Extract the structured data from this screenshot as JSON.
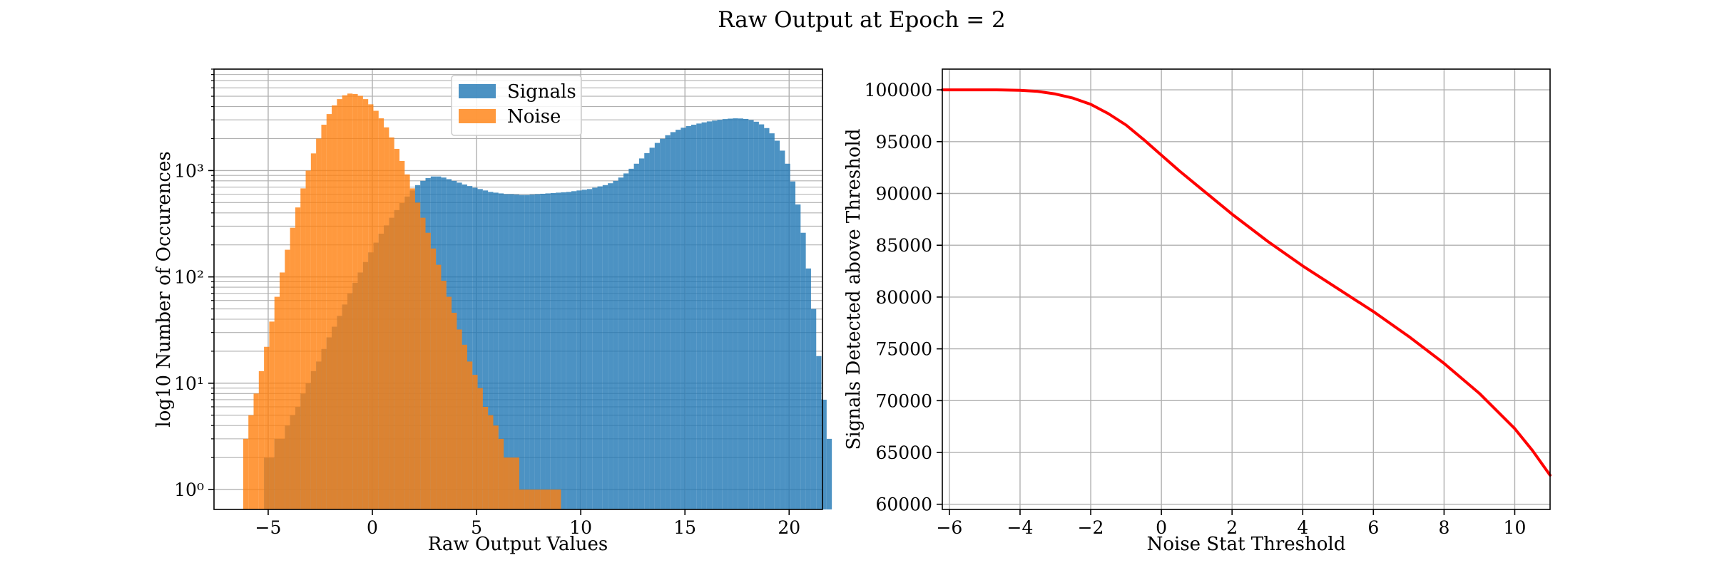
{
  "figure": {
    "title": "Raw Output at Epoch = 2"
  },
  "chart_data": [
    {
      "type": "bar",
      "subtype": "histogram",
      "xlabel": "Raw Output Values",
      "ylabel": "log10 Number of Occurences",
      "yscale": "log",
      "xlim": [
        -7.6,
        21.6
      ],
      "ylim": [
        0.65,
        9000
      ],
      "xticks": [
        -5,
        0,
        5,
        10,
        15,
        20
      ],
      "xtick_labels": [
        "−5",
        "0",
        "5",
        "10",
        "15",
        "20"
      ],
      "yticks": [
        1,
        10,
        100,
        1000
      ],
      "ytick_labels": [
        "10⁰",
        "10¹",
        "10²",
        "10³"
      ],
      "grid": true,
      "legend": {
        "placement": "upper-center",
        "entries": [
          "Signals",
          "Noise"
        ]
      },
      "bin_width": 0.25,
      "series": [
        {
          "name": "Signals",
          "color": "#1f77b4",
          "opacity": 0.8,
          "x_start": -5.2,
          "values": [
            2,
            2,
            3,
            3,
            4,
            5,
            6,
            8,
            10,
            13,
            16,
            21,
            27,
            34,
            43,
            55,
            70,
            88,
            110,
            138,
            170,
            210,
            255,
            305,
            360,
            425,
            495,
            570,
            650,
            730,
            800,
            850,
            880,
            880,
            860,
            830,
            800,
            770,
            740,
            715,
            690,
            670,
            650,
            630,
            620,
            610,
            600,
            600,
            595,
            590,
            590,
            595,
            600,
            605,
            610,
            615,
            620,
            625,
            630,
            640,
            650,
            660,
            670,
            690,
            710,
            730,
            760,
            800,
            860,
            940,
            1040,
            1160,
            1300,
            1460,
            1640,
            1820,
            1990,
            2150,
            2300,
            2420,
            2530,
            2620,
            2700,
            2770,
            2840,
            2900,
            2950,
            3000,
            3050,
            3080,
            3100,
            3090,
            3060,
            2990,
            2880,
            2720,
            2510,
            2240,
            1910,
            1540,
            1160,
            790,
            480,
            260,
            120,
            50,
            18,
            7,
            3
          ]
        },
        {
          "name": "Noise",
          "color": "#ff7f0e",
          "opacity": 0.8,
          "x_start": -6.2,
          "values": [
            3,
            5,
            8,
            13,
            22,
            38,
            65,
            110,
            180,
            290,
            450,
            680,
            1000,
            1450,
            2000,
            2700,
            3400,
            4100,
            4700,
            5100,
            5300,
            5250,
            5050,
            4700,
            4200,
            3650,
            3100,
            2550,
            2050,
            1600,
            1230,
            920,
            680,
            500,
            360,
            260,
            185,
            130,
            92,
            65,
            46,
            32,
            23,
            16,
            12,
            9,
            6,
            5,
            4,
            3,
            2,
            2,
            2,
            1,
            1,
            1,
            1,
            1,
            1,
            1,
            1
          ]
        }
      ]
    },
    {
      "type": "line",
      "xlabel": "Noise Stat Threshold",
      "ylabel": "Signals Detected above Threshold",
      "xlim": [
        -6.2,
        11
      ],
      "ylim": [
        59500,
        102000
      ],
      "xticks": [
        -6,
        -4,
        -2,
        0,
        2,
        4,
        6,
        8,
        10
      ],
      "xtick_labels": [
        "−6",
        "−4",
        "−2",
        "0",
        "2",
        "4",
        "6",
        "8",
        "10"
      ],
      "yticks": [
        60000,
        65000,
        70000,
        75000,
        80000,
        85000,
        90000,
        95000,
        100000
      ],
      "ytick_labels": [
        "60000",
        "65000",
        "70000",
        "75000",
        "80000",
        "85000",
        "90000",
        "95000",
        "100000"
      ],
      "grid": true,
      "series": [
        {
          "color": "#ff0000",
          "x": [
            -6.2,
            -5,
            -4.5,
            -4,
            -3.5,
            -3,
            -2.5,
            -2,
            -1.5,
            -1,
            -0.5,
            0,
            0.5,
            1,
            1.5,
            2,
            2.5,
            3,
            4,
            5,
            6,
            7,
            8,
            9,
            10,
            10.5,
            11
          ],
          "y": [
            100000,
            100000,
            99990,
            99950,
            99850,
            99600,
            99200,
            98600,
            97700,
            96600,
            95200,
            93700,
            92200,
            90800,
            89400,
            88000,
            86700,
            85400,
            83000,
            80800,
            78600,
            76200,
            73600,
            70700,
            67300,
            65200,
            62800
          ]
        }
      ]
    }
  ]
}
